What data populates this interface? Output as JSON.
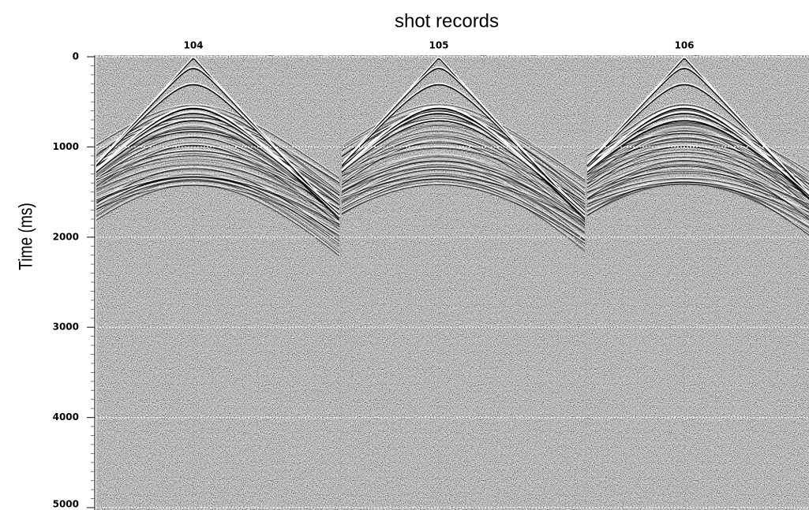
{
  "chart_data": {
    "type": "seismic",
    "title": "shot records",
    "y_label": "Time (ms)",
    "categories": [
      "104",
      "105",
      "106"
    ],
    "ylim": [
      0,
      5000
    ],
    "yticks": [
      0,
      1000,
      2000,
      3000,
      4000,
      5000
    ],
    "grid": true
  }
}
